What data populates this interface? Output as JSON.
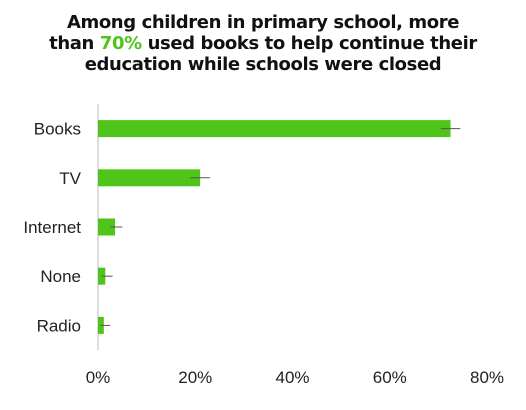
{
  "chart_data": {
    "type": "bar",
    "orientation": "horizontal",
    "title": {
      "line1": "Among children in primary school, more",
      "line2_before": "than ",
      "line2_highlight": "70%",
      "line2_after": " used books to help continue their",
      "line3": "education while schools were closed"
    },
    "categories": [
      "Books",
      "TV",
      "Internet",
      "None",
      "Radio"
    ],
    "values": [
      72.5,
      21.0,
      3.5,
      1.5,
      1.2
    ],
    "error_low": [
      70.5,
      19.0,
      2.5,
      0.8,
      0.5
    ],
    "error_high": [
      74.5,
      23.0,
      5.0,
      3.0,
      2.5
    ],
    "xlim": [
      0,
      80
    ],
    "x_ticks": [
      0,
      20,
      40,
      60,
      80
    ],
    "x_tick_labels": [
      "0%",
      "20%",
      "40%",
      "60%",
      "80%"
    ],
    "xlabel": "",
    "ylabel": "",
    "grid": false,
    "legend": "none",
    "bar_color": "#4fc41a",
    "highlight_color": "#4fc41a",
    "axis_color": "#bbbbbb",
    "error_color": "#555555"
  }
}
